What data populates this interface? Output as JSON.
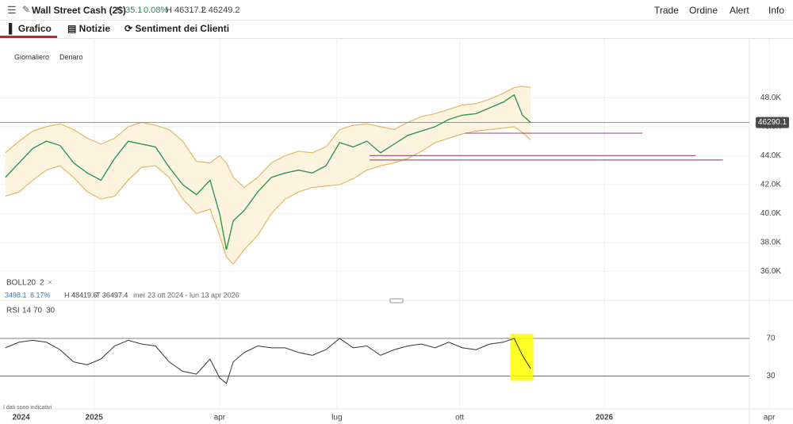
{
  "header": {
    "instrument": "Wall Street Cash (2$)",
    "change": "35.1",
    "change_pct": "0.08%",
    "high": "H 46317.2",
    "low": "L 46249.2",
    "menu": [
      "Trade",
      "Ordine",
      "Alert",
      "Info"
    ]
  },
  "tabs": [
    "Grafico",
    "Notizie",
    "Sentiment dei Clienti"
  ],
  "chart_controls": [
    "Giornaliero",
    "Denaro"
  ],
  "indicator_boll": {
    "name": "BOLL",
    "period": 20,
    "stddev": 2,
    "remove": "×"
  },
  "stats": {
    "range": "3498.1",
    "range_pct": "8.17%",
    "high": "H 48419.6",
    "low": "T 36497.4",
    "period": "mer 23 ott 2024 - lun 13 apr 2026"
  },
  "indicator_rsi": {
    "name": "RSI",
    "period": 14,
    "upper": 70,
    "lower": 30
  },
  "disclaimer": "I dati sono indicativi",
  "chart_data": {
    "type": "line",
    "x": [
      -65,
      -55,
      -45,
      -35,
      -25,
      -15,
      -5,
      5,
      15,
      25,
      35,
      45,
      55,
      65,
      75,
      85,
      92,
      97,
      102,
      110,
      120,
      130,
      140,
      150,
      160,
      170,
      180,
      190,
      200,
      210,
      220,
      230,
      240,
      250,
      260,
      270,
      280,
      290,
      300,
      308,
      314,
      320
    ],
    "values": [
      42500,
      43500,
      44500,
      45000,
      44700,
      43500,
      42800,
      42300,
      43800,
      45000,
      44800,
      44600,
      43200,
      42000,
      41300,
      42300,
      40000,
      37500,
      39500,
      40200,
      41500,
      42500,
      42800,
      43000,
      42800,
      43300,
      44900,
      44600,
      45000,
      44200,
      44800,
      45400,
      45700,
      46000,
      46500,
      46800,
      46900,
      47300,
      47700,
      48200,
      46800,
      46290
    ],
    "boll_upper": [
      44200,
      45000,
      45700,
      46000,
      46200,
      45800,
      45200,
      44800,
      45200,
      46000,
      46300,
      46100,
      45800,
      45000,
      43600,
      43500,
      44000,
      43500,
      42500,
      41800,
      42500,
      43500,
      44000,
      44300,
      44200,
      44600,
      45800,
      46100,
      46200,
      46000,
      45800,
      46300,
      46700,
      46900,
      47200,
      47500,
      47600,
      47900,
      48300,
      48700,
      48800,
      48700
    ],
    "boll_lower": [
      41200,
      41500,
      42300,
      43000,
      43300,
      42500,
      41500,
      41000,
      41200,
      42300,
      43200,
      43300,
      42500,
      41000,
      40000,
      40300,
      38500,
      37000,
      36500,
      37500,
      38500,
      40000,
      41000,
      41500,
      41800,
      41900,
      42000,
      42400,
      43000,
      43300,
      43500,
      43800,
      44300,
      44900,
      45200,
      45500,
      45700,
      45800,
      45900,
      46000,
      45600,
      45100
    ],
    "rsi": [
      60,
      66,
      68,
      66,
      58,
      45,
      42,
      48,
      62,
      68,
      64,
      62,
      45,
      35,
      32,
      48,
      28,
      22,
      45,
      55,
      62,
      60,
      60,
      55,
      52,
      58,
      70,
      60,
      62,
      52,
      58,
      62,
      64,
      60,
      66,
      60,
      58,
      64,
      66,
      70,
      52,
      38
    ],
    "color": "#333333",
    "band_color": "#e3b766",
    "band_fill": "#fdf4e0",
    "level_color": "#9c5a8c",
    "highlight_color": "#ffff00",
    "last_price": 46290.1,
    "levels": [
      {
        "value": 45550,
        "from": 272,
        "to": 402
      },
      {
        "value": 44000,
        "from": 202,
        "to": 441
      },
      {
        "value": 43700,
        "from": 202,
        "to": 461
      }
    ],
    "highlight": [
      305,
      322
    ],
    "xlim": [
      -69,
      512.4
    ],
    "xticks": [
      {
        "value": -60,
        "label": "2024"
      },
      {
        "value": 0,
        "label": "2025"
      },
      {
        "value": 92,
        "label": "apr"
      },
      {
        "value": 178,
        "label": "lug"
      },
      {
        "value": 268,
        "label": "ott"
      },
      {
        "value": 374,
        "label": "2026"
      },
      {
        "value": 495,
        "label": "apr"
      }
    ],
    "ylim": [
      34000,
      50100
    ],
    "yticks": [
      {
        "value": 36000,
        "label": "36.0K"
      },
      {
        "value": 38000,
        "label": "38.0K"
      },
      {
        "value": 40000,
        "label": "40.0K"
      },
      {
        "value": 42000,
        "label": "42.0K"
      },
      {
        "value": 44000,
        "label": "44.0K"
      },
      {
        "value": 46000,
        "label": "46.0K"
      },
      {
        "value": 48000,
        "label": "48.0K"
      }
    ],
    "rsi_lim": [
      0,
      97
    ],
    "rsi_ticks": [
      30,
      70
    ],
    "grid": true
  }
}
